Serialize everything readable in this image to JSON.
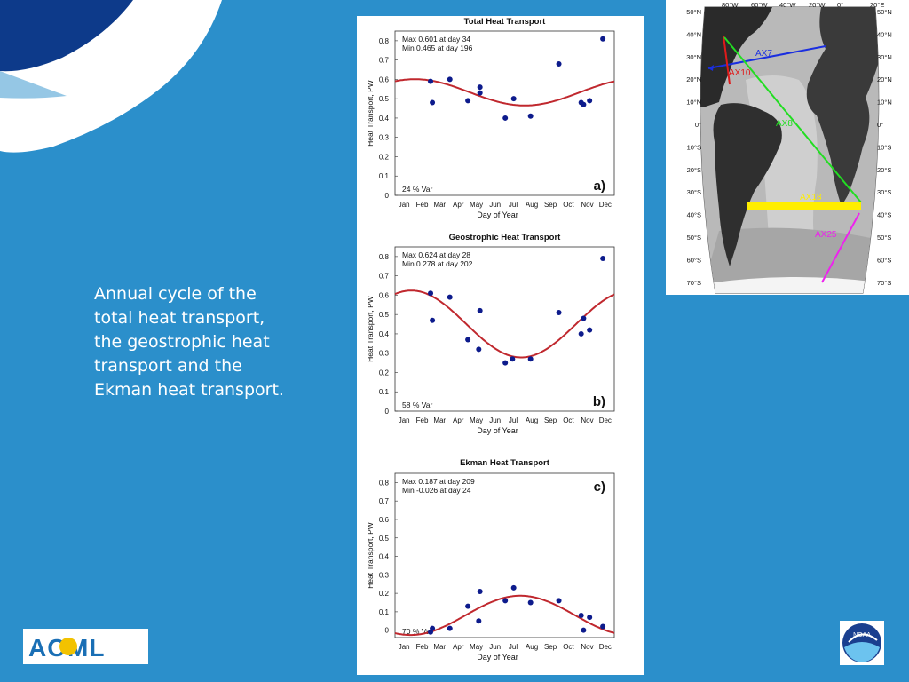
{
  "caption_lines": [
    "Annual cycle of the",
    "total heat transport,",
    "the geostrophic heat",
    "transport and the",
    "Ekman heat transport."
  ],
  "colors": {
    "background": "#2b8fcb",
    "fit_curve": "#c0282e",
    "points": "#0d1b8c"
  },
  "chart_data": [
    {
      "type": "scatter",
      "title": "Total Heat Transport",
      "panel_label": "a)",
      "xlabel": "Day of Year",
      "ylabel": "Heat Transport, PW",
      "x_tick_labels": [
        "Jan",
        "Feb",
        "Mar",
        "Apr",
        "May",
        "Jun",
        "Jul",
        "Aug",
        "Sep",
        "Oct",
        "Nov",
        "Dec"
      ],
      "y_ticks": [
        "0",
        "0.1",
        "0.2",
        "0.3",
        "0.4",
        "0.5",
        "0.6",
        "0.7",
        "0.8"
      ],
      "ylim": [
        0,
        0.85
      ],
      "xlim": [
        1,
        365
      ],
      "annotation": [
        "Max 0.601 at day 34",
        "Min 0.465 at day 196"
      ],
      "var_text": "24 % Var",
      "fit": {
        "mean": 0.533,
        "amplitude": 0.068,
        "max_day": 34
      },
      "points": [
        [
          60,
          0.59
        ],
        [
          63,
          0.48
        ],
        [
          92,
          0.6
        ],
        [
          122,
          0.49
        ],
        [
          142,
          0.56
        ],
        [
          142,
          0.53
        ],
        [
          184,
          0.4
        ],
        [
          198,
          0.5
        ],
        [
          226,
          0.41
        ],
        [
          273,
          0.68
        ],
        [
          310,
          0.48
        ],
        [
          314,
          0.47
        ],
        [
          324,
          0.49
        ],
        [
          346,
          0.81
        ]
      ]
    },
    {
      "type": "scatter",
      "title": "Geostrophic Heat Transport",
      "panel_label": "b)",
      "xlabel": "Day of Year",
      "ylabel": "Heat Transport, PW",
      "x_tick_labels": [
        "Jan",
        "Feb",
        "Mar",
        "Apr",
        "May",
        "Jun",
        "Jul",
        "Aug",
        "Sep",
        "Oct",
        "Nov",
        "Dec"
      ],
      "y_ticks": [
        "0",
        "0.1",
        "0.2",
        "0.3",
        "0.4",
        "0.5",
        "0.6",
        "0.7",
        "0.8"
      ],
      "ylim": [
        0,
        0.85
      ],
      "xlim": [
        1,
        365
      ],
      "annotation": [
        "Max 0.624 at day 28",
        "Min 0.278 at day 202"
      ],
      "var_text": "58 % Var",
      "fit": {
        "mean": 0.451,
        "amplitude": 0.173,
        "max_day": 28
      },
      "points": [
        [
          60,
          0.61
        ],
        [
          63,
          0.47
        ],
        [
          92,
          0.59
        ],
        [
          122,
          0.37
        ],
        [
          140,
          0.32
        ],
        [
          142,
          0.52
        ],
        [
          184,
          0.25
        ],
        [
          196,
          0.27
        ],
        [
          226,
          0.27
        ],
        [
          273,
          0.51
        ],
        [
          310,
          0.4
        ],
        [
          314,
          0.48
        ],
        [
          324,
          0.42
        ],
        [
          346,
          0.79
        ]
      ]
    },
    {
      "type": "scatter",
      "title": "Ekman Heat Transport",
      "panel_label": "c)",
      "xlabel": "Day of Year",
      "ylabel": "Heat Transport, PW",
      "x_tick_labels": [
        "Jan",
        "Feb",
        "Mar",
        "Apr",
        "May",
        "Jun",
        "Jul",
        "Aug",
        "Sep",
        "Oct",
        "Nov",
        "Dec"
      ],
      "y_ticks": [
        "0",
        "0.1",
        "0.2",
        "0.3",
        "0.4",
        "0.5",
        "0.6",
        "0.7",
        "0.8"
      ],
      "ylim": [
        -0.04,
        0.85
      ],
      "xlim": [
        1,
        365
      ],
      "annotation": [
        "Max 0.187 at day 209",
        "Min -0.026 at day 24"
      ],
      "var_text": "70 % Var",
      "fit": {
        "mean": 0.0805,
        "amplitude": 0.1065,
        "max_day": 209
      },
      "points": [
        [
          60,
          -0.01
        ],
        [
          63,
          0.01
        ],
        [
          92,
          0.01
        ],
        [
          122,
          0.13
        ],
        [
          140,
          0.05
        ],
        [
          142,
          0.21
        ],
        [
          184,
          0.16
        ],
        [
          198,
          0.23
        ],
        [
          226,
          0.15
        ],
        [
          273,
          0.16
        ],
        [
          310,
          0.08
        ],
        [
          314,
          0.0
        ],
        [
          324,
          0.07
        ],
        [
          346,
          0.02
        ]
      ]
    }
  ],
  "map": {
    "top_labels": [
      "80°W",
      "60°W",
      "40°W",
      "20°W",
      "0°",
      "20°E"
    ],
    "left_labels": [
      "50°N",
      "40°N",
      "30°N",
      "20°N",
      "10°N",
      "0°",
      "10°S",
      "20°S",
      "30°S",
      "40°S",
      "50°S",
      "60°S",
      "70°S"
    ],
    "right_labels": [
      "50°N",
      "40°N",
      "30°N",
      "20°N",
      "10°N",
      "0°",
      "10°S",
      "20°S",
      "30°S",
      "40°S",
      "50°S",
      "60°S",
      "70°S"
    ],
    "lines": [
      {
        "name": "AX7",
        "color": "#1a2ee0"
      },
      {
        "name": "AX10",
        "color": "#e01a1a"
      },
      {
        "name": "AX8",
        "color": "#22dd22"
      },
      {
        "name": "AX18",
        "color": "#ffee00"
      },
      {
        "name": "AX25",
        "color": "#ee22ee"
      }
    ]
  },
  "logos": {
    "aoml": "AOML",
    "noaa": "NOAA"
  }
}
